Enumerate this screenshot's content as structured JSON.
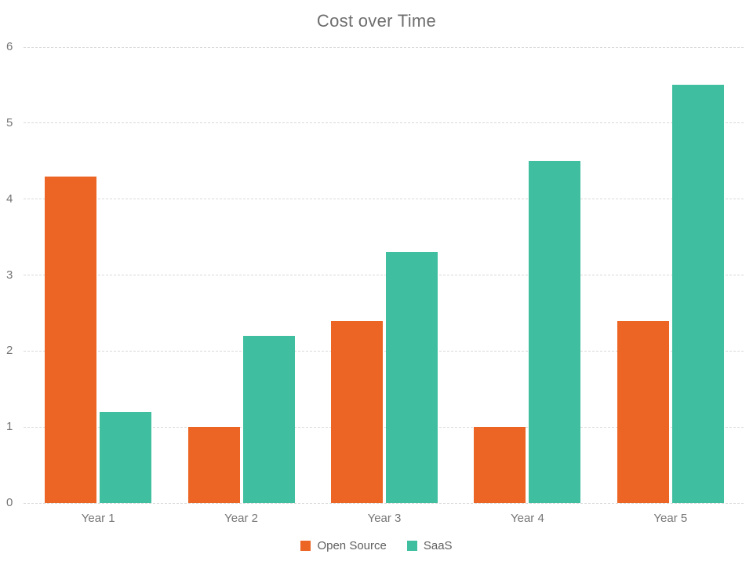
{
  "title": "Cost over Time",
  "colors": {
    "open_source": "#EC6524",
    "saas": "#3FBF9F",
    "gridline": "#D9D9D9",
    "axis_text": "#757575",
    "title_text": "#6E6E6E",
    "legend_text": "#5F5F5F",
    "background": "#FFFFFF"
  },
  "chart_data": {
    "type": "bar",
    "title": "Cost over Time",
    "categories": [
      "Year 1",
      "Year 2",
      "Year 3",
      "Year 4",
      "Year 5"
    ],
    "series": [
      {
        "name": "Open Source",
        "color": "#EC6524",
        "values": [
          4.3,
          1.0,
          2.4,
          1.0,
          2.4
        ]
      },
      {
        "name": "SaaS",
        "color": "#3FBF9F",
        "values": [
          1.2,
          2.2,
          3.3,
          4.5,
          5.5
        ]
      }
    ],
    "xlabel": "",
    "ylabel": "",
    "ylim": [
      0,
      6
    ],
    "yticks": [
      0,
      1,
      2,
      3,
      4,
      5,
      6
    ],
    "grid": true,
    "grid_style": "dashed",
    "legend_position": "bottom"
  }
}
